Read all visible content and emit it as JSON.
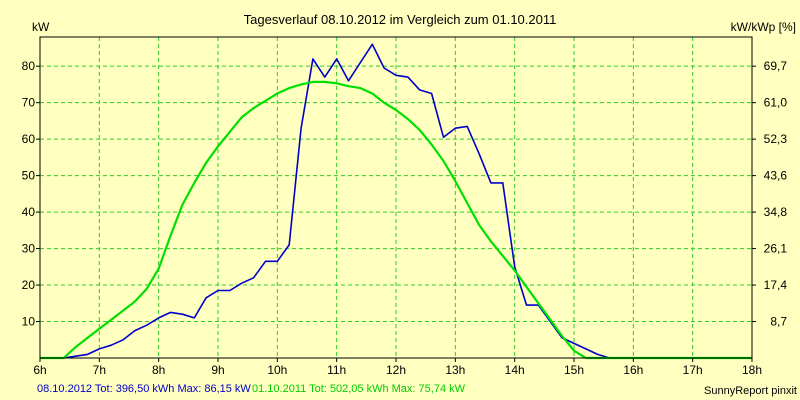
{
  "chart_data": {
    "type": "line",
    "title": "Tagesverlauf 08.10.2012 im Vergleich zum 01.10.2011",
    "ylabel_left": "kW",
    "ylabel_right": "kW/kWp [%]",
    "xlim": [
      6,
      18
    ],
    "ylim": [
      0,
      88
    ],
    "grid": true,
    "x_ticks": [
      {
        "x": 6,
        "label": "6h"
      },
      {
        "x": 7,
        "label": "7h"
      },
      {
        "x": 8,
        "label": "8h"
      },
      {
        "x": 9,
        "label": "9h"
      },
      {
        "x": 10,
        "label": "10h"
      },
      {
        "x": 11,
        "label": "11h"
      },
      {
        "x": 12,
        "label": "12h"
      },
      {
        "x": 13,
        "label": "13h"
      },
      {
        "x": 14,
        "label": "14h"
      },
      {
        "x": 15,
        "label": "15h"
      },
      {
        "x": 16,
        "label": "16h"
      },
      {
        "x": 17,
        "label": "17h"
      },
      {
        "x": 18,
        "label": "18h"
      }
    ],
    "y_ticks_left": [
      {
        "y": 10,
        "label": "10"
      },
      {
        "y": 20,
        "label": "20"
      },
      {
        "y": 30,
        "label": "30"
      },
      {
        "y": 40,
        "label": "40"
      },
      {
        "y": 50,
        "label": "50"
      },
      {
        "y": 60,
        "label": "60"
      },
      {
        "y": 70,
        "label": "70"
      },
      {
        "y": 80,
        "label": "80"
      }
    ],
    "y_ticks_right": [
      {
        "y": 10,
        "label": "8,7"
      },
      {
        "y": 20,
        "label": "17,4"
      },
      {
        "y": 30,
        "label": "26,1"
      },
      {
        "y": 40,
        "label": "34,8"
      },
      {
        "y": 50,
        "label": "43,6"
      },
      {
        "y": 60,
        "label": "52,3"
      },
      {
        "y": 70,
        "label": "61,0"
      },
      {
        "y": 80,
        "label": "69,7"
      }
    ],
    "series": [
      {
        "name": "08.10.2012",
        "color": "#0000cc",
        "x": [
          6.0,
          6.4,
          6.6,
          6.8,
          7.0,
          7.2,
          7.4,
          7.6,
          7.8,
          8.0,
          8.2,
          8.4,
          8.6,
          8.8,
          9.0,
          9.2,
          9.4,
          9.6,
          9.8,
          10.0,
          10.2,
          10.4,
          10.6,
          10.8,
          11.0,
          11.2,
          11.4,
          11.6,
          11.8,
          12.0,
          12.2,
          12.4,
          12.6,
          12.8,
          13.0,
          13.2,
          13.4,
          13.6,
          13.8,
          14.0,
          14.2,
          14.4,
          14.6,
          14.8,
          15.0,
          15.2,
          15.4,
          15.6,
          15.8,
          16.0,
          16.2,
          16.4,
          16.6,
          16.8,
          17.0,
          17.2,
          17.4,
          18.0
        ],
        "y": [
          0,
          0,
          0.5,
          1,
          2.5,
          3.5,
          5,
          7.5,
          9,
          11,
          12.5,
          12,
          11,
          16.5,
          18.5,
          18.5,
          20.5,
          22,
          26.5,
          26.5,
          31,
          63,
          82,
          77,
          82,
          76,
          81,
          86,
          79.5,
          77.5,
          77,
          73.5,
          72.5,
          60.5,
          63,
          63.5,
          56,
          48,
          48,
          25,
          14.5,
          14.5,
          10,
          5.5,
          4,
          2.5,
          1,
          0,
          0,
          0,
          0,
          0,
          0,
          0,
          0,
          0,
          0,
          0
        ]
      },
      {
        "name": "01.10.2011",
        "color": "#00e000",
        "x": [
          6.0,
          6.4,
          6.6,
          6.8,
          7.0,
          7.2,
          7.4,
          7.6,
          7.8,
          8.0,
          8.2,
          8.4,
          8.6,
          8.8,
          9.0,
          9.2,
          9.4,
          9.6,
          9.8,
          10.0,
          10.2,
          10.4,
          10.6,
          10.8,
          11.0,
          11.2,
          11.4,
          11.6,
          11.8,
          12.0,
          12.2,
          12.4,
          12.6,
          12.8,
          13.0,
          13.2,
          13.4,
          13.6,
          13.8,
          14.0,
          14.2,
          14.4,
          14.6,
          14.8,
          15.0,
          15.2,
          15.4,
          15.6,
          15.8,
          16.0,
          16.2,
          16.4,
          16.6,
          16.8,
          17.0,
          17.2,
          17.4,
          17.6,
          18.0
        ],
        "y": [
          0,
          0,
          3,
          5.5,
          8,
          10.5,
          13,
          15.5,
          19,
          24.5,
          33.5,
          42,
          48,
          53.5,
          58,
          62,
          66,
          68.5,
          70.5,
          72.5,
          74,
          75,
          75.7,
          75.7,
          75.3,
          74.5,
          74,
          72.5,
          70,
          68,
          65.5,
          62.5,
          58.5,
          54,
          48.5,
          42.5,
          36.5,
          32,
          28,
          24,
          19.5,
          15,
          10.5,
          6,
          2,
          0,
          0,
          0,
          0,
          0,
          0,
          0,
          0,
          0,
          0,
          0,
          0,
          0,
          0
        ]
      }
    ]
  },
  "footer": {
    "series1_text": "08.10.2012 Tot: 396,50 kWh Max: 86,15 kW",
    "series2_text": "01.10.2011 Tot: 502,05 kWh Max: 75,74 kW",
    "credit": "SunnyReport pinxit"
  }
}
